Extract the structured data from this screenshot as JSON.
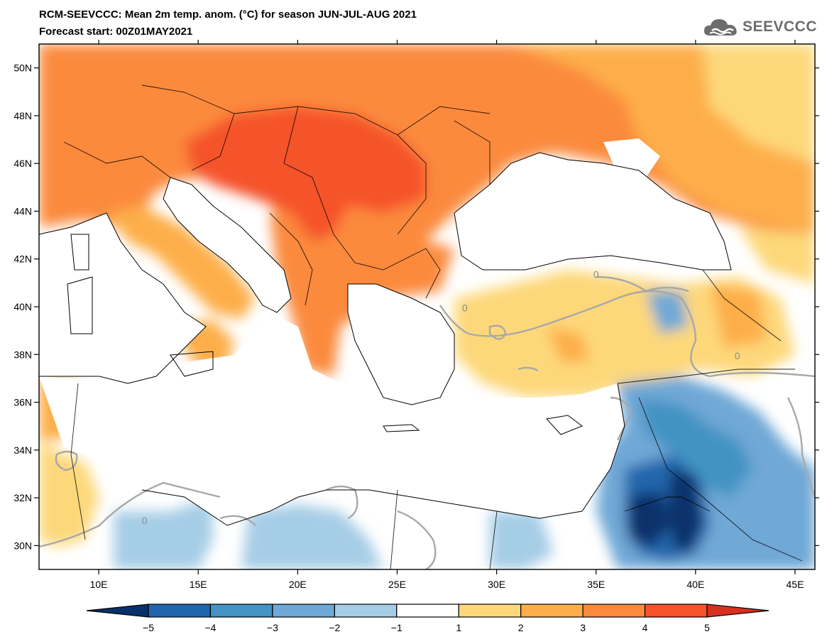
{
  "header": {
    "title": "RCM-SEEVCCC: Mean 2m temp. anom. (°C) for season JUN-JUL-AUG 2021",
    "subtitle": "Forecast start: 00Z01MAY2021",
    "logo_text": "SEEVCCC"
  },
  "map": {
    "lon_range": [
      7,
      46
    ],
    "lat_range": [
      29,
      51
    ],
    "lon_ticks": [
      {
        "value": 10,
        "label": "10E"
      },
      {
        "value": 15,
        "label": "15E"
      },
      {
        "value": 20,
        "label": "20E"
      },
      {
        "value": 25,
        "label": "25E"
      },
      {
        "value": 30,
        "label": "30E"
      },
      {
        "value": 35,
        "label": "35E"
      },
      {
        "value": 40,
        "label": "40E"
      },
      {
        "value": 45,
        "label": "45E"
      }
    ],
    "lat_ticks": [
      {
        "value": 30,
        "label": "30N"
      },
      {
        "value": 32,
        "label": "32N"
      },
      {
        "value": 34,
        "label": "34N"
      },
      {
        "value": 36,
        "label": "36N"
      },
      {
        "value": 38,
        "label": "38N"
      },
      {
        "value": 40,
        "label": "40N"
      },
      {
        "value": 42,
        "label": "42N"
      },
      {
        "value": 44,
        "label": "44N"
      },
      {
        "value": 46,
        "label": "46N"
      },
      {
        "value": 48,
        "label": "48N"
      },
      {
        "value": 50,
        "label": "50N"
      }
    ],
    "contour_labels": [
      {
        "lon": 12.3,
        "lat": 30.9,
        "label": "0"
      },
      {
        "lon": 28.4,
        "lat": 39.8,
        "label": "0"
      },
      {
        "lon": 35.0,
        "lat": 41.2,
        "label": "0"
      },
      {
        "lon": 42.1,
        "lat": 37.8,
        "label": "0"
      }
    ]
  },
  "colorbar": {
    "labels": [
      "−5",
      "−4",
      "−3",
      "−2",
      "−1",
      "1",
      "2",
      "3",
      "4",
      "5"
    ],
    "colors": [
      "#08306b",
      "#2166ac",
      "#4393c3",
      "#6fa8d6",
      "#a6cde6",
      "#ffffff",
      "#fdd87a",
      "#fdae4a",
      "#fb8a3c",
      "#f5532a",
      "#d7301f"
    ]
  }
}
